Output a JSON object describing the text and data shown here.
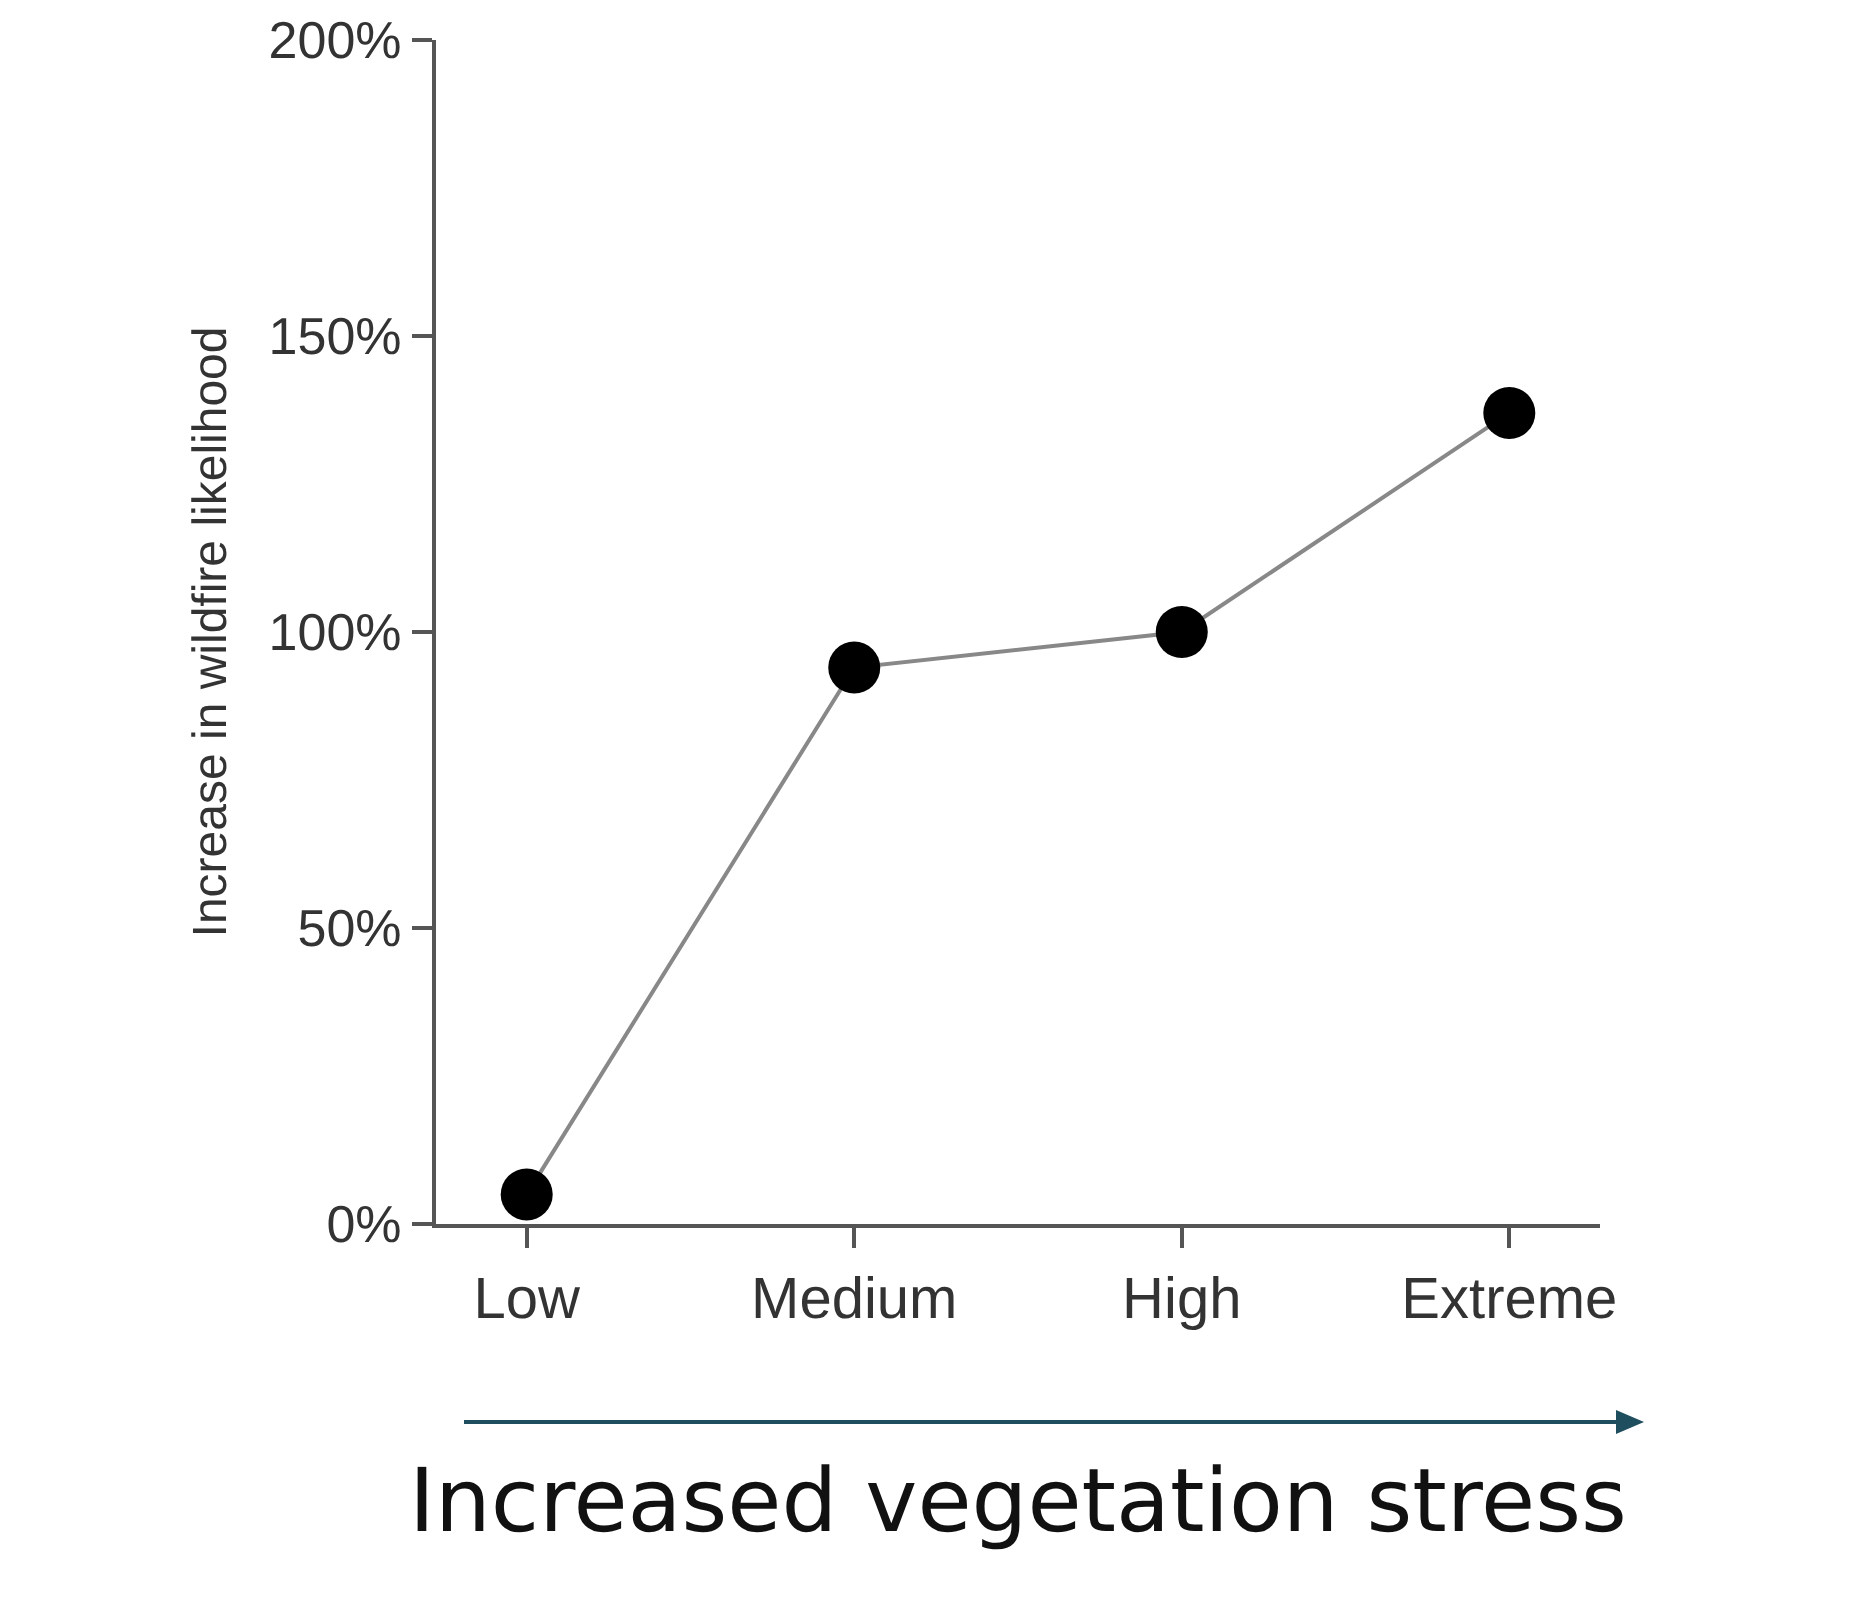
{
  "chart_data": {
    "type": "line",
    "categories": [
      "Low",
      "Medium",
      "High",
      "Extreme"
    ],
    "series": [
      {
        "color": "#000000",
        "values": [
          5,
          94,
          100,
          137
        ]
      }
    ],
    "xlabel": "Increased vegetation stress",
    "ylabel": "Increase in wildfire likelihood",
    "ylim": [
      0,
      200
    ],
    "yticks": [
      {
        "value": 0,
        "label": "0%"
      },
      {
        "value": 50,
        "label": "50%"
      },
      {
        "value": 100,
        "label": "100%"
      },
      {
        "value": 150,
        "label": "150%"
      },
      {
        "value": 200,
        "label": "200%"
      }
    ],
    "marker": "circle",
    "line_style": "solid",
    "grid": false,
    "legend": false
  }
}
